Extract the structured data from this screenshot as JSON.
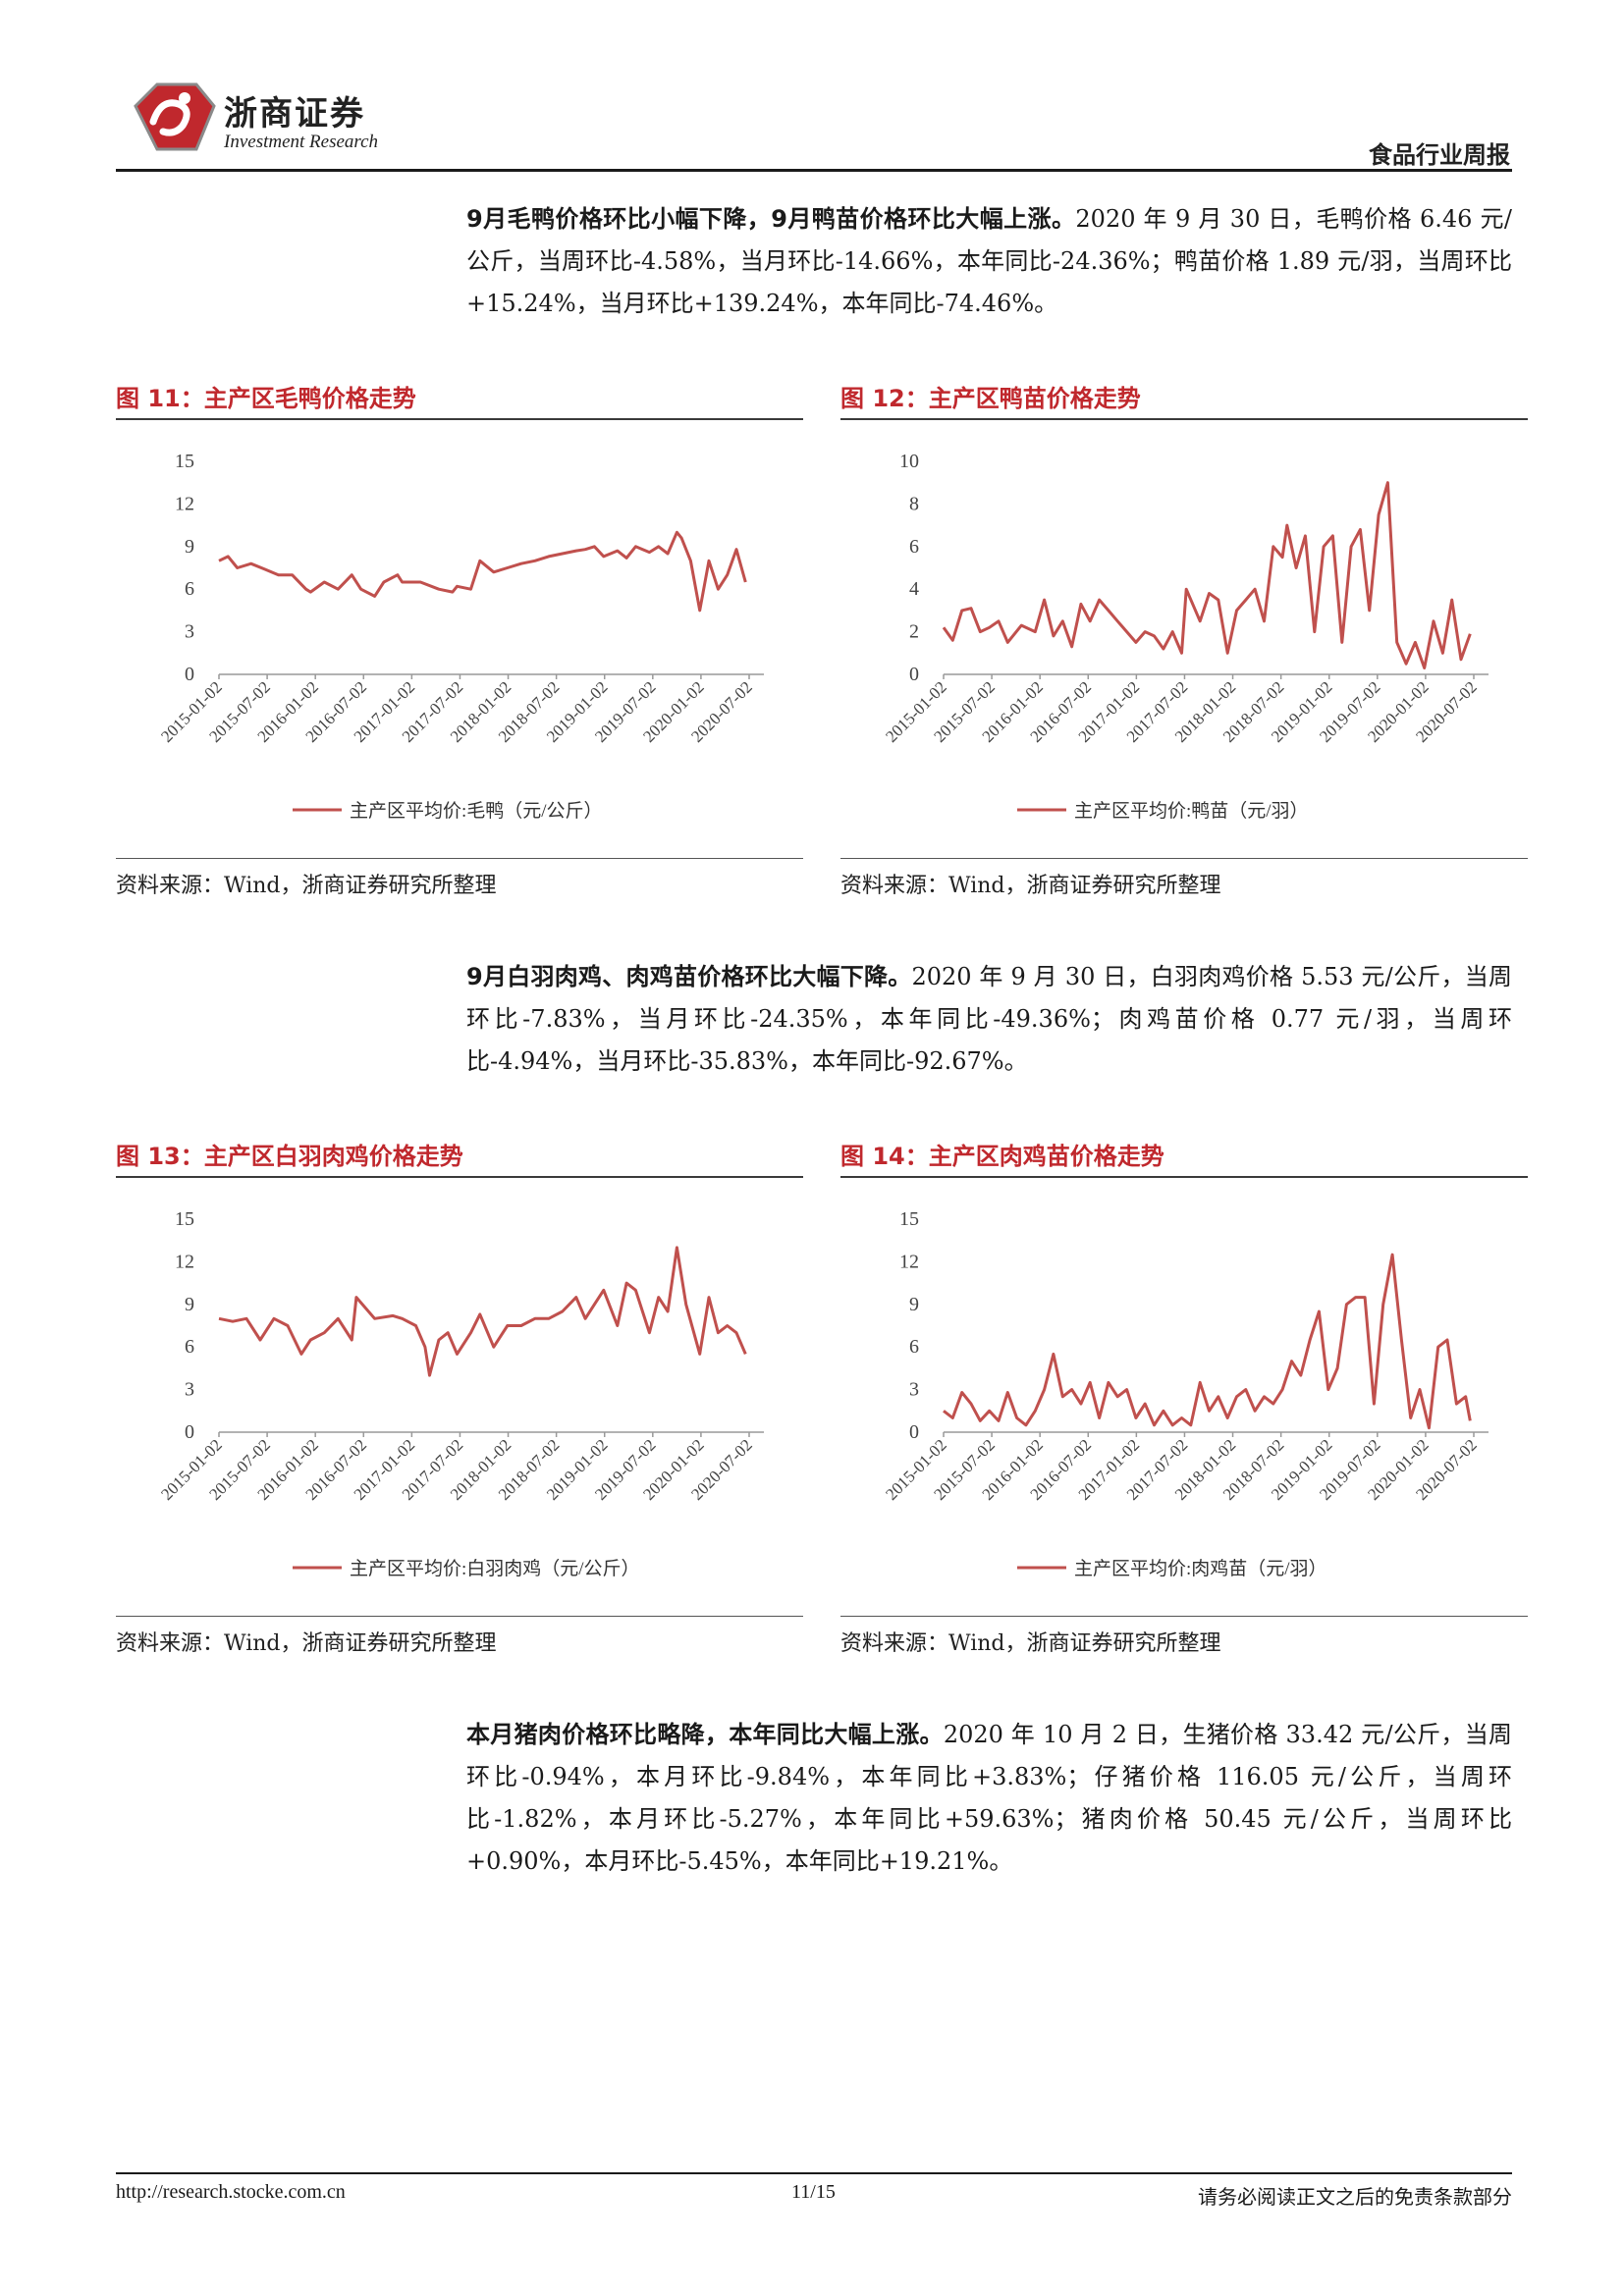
{
  "header": {
    "brand_name": "浙商证券",
    "brand_sub": "Investment Research",
    "report_type": "食品行业周报",
    "logo_color": "#c0282d"
  },
  "paragraphs": [
    {
      "lead": "9月毛鸭价格环比小幅下降，9月鸭苗价格环比大幅上涨。",
      "body": "2020 年 9 月 30 日，毛鸭价格 6.46 元/公斤，当周环比-4.58%，当月环比-14.66%，本年同比-24.36%；鸭苗价格 1.89 元/羽，当周环比+15.24%，当月环比+139.24%，本年同比-74.46%。"
    },
    {
      "lead": "9月白羽肉鸡、肉鸡苗价格环比大幅下降。",
      "body": "2020 年 9 月 30 日，白羽肉鸡价格 5.53 元/公斤，当周环比-7.83%，当月环比-24.35%，本年同比-49.36%；肉鸡苗价格 0.77 元/羽，当周环比-4.94%，当月环比-35.83%，本年同比-92.67%。"
    },
    {
      "lead": "本月猪肉价格环比略降，本年同比大幅上涨。",
      "body": "2020 年 10 月 2 日，生猪价格 33.42 元/公斤，当周环比-0.94%，本月环比-9.84%，本年同比+3.83%；仔猪价格 116.05 元/公斤，当周环比-1.82%，本月环比-5.27%，本年同比+59.63%；猪肉价格 50.45 元/公斤，当周环比+0.90%，本月环比-5.45%，本年同比+19.21%。"
    }
  ],
  "figures": [
    {
      "label": "图  11：主产区毛鸭价格走势",
      "source": "资料来源：Wind，浙商证券研究所整理"
    },
    {
      "label": "图  12：主产区鸭苗价格走势",
      "source": "资料来源：Wind，浙商证券研究所整理"
    },
    {
      "label": "图  13：主产区白羽肉鸡价格走势",
      "source": "资料来源：Wind，浙商证券研究所整理"
    },
    {
      "label": "图  14：主产区肉鸡苗价格走势",
      "source": "资料来源：Wind，浙商证券研究所整理"
    }
  ],
  "chart_data": [
    {
      "type": "line",
      "x_ticks": [
        "2015-01-02",
        "2015-07-02",
        "2016-01-02",
        "2016-07-02",
        "2017-01-02",
        "2017-07-02",
        "2018-01-02",
        "2018-07-02",
        "2019-01-02",
        "2019-07-02",
        "2020-01-02",
        "2020-07-02"
      ],
      "y_ticks": [
        "0",
        "3",
        "6",
        "9",
        "12",
        "15"
      ],
      "ylim": [
        0,
        15
      ],
      "line_color": "#c0504d",
      "series": [
        {
          "name": "主产区平均价:毛鸭（元/公斤）",
          "x": [
            2015.0,
            2015.1,
            2015.2,
            2015.35,
            2015.5,
            2015.65,
            2015.8,
            2015.95,
            2016.0,
            2016.15,
            2016.3,
            2016.45,
            2016.55,
            2016.7,
            2016.8,
            2016.95,
            2017.0,
            2017.2,
            2017.4,
            2017.55,
            2017.6,
            2017.75,
            2017.85,
            2018.0,
            2018.15,
            2018.3,
            2018.45,
            2018.6,
            2018.75,
            2018.9,
            2019.0,
            2019.1,
            2019.2,
            2019.35,
            2019.45,
            2019.55,
            2019.7,
            2019.8,
            2019.9,
            2020.0,
            2020.05,
            2020.15,
            2020.25,
            2020.35,
            2020.45,
            2020.55,
            2020.65,
            2020.75
          ],
          "y": [
            8.0,
            8.3,
            7.5,
            7.8,
            7.4,
            7.0,
            7.0,
            6.0,
            5.8,
            6.5,
            6.0,
            7.0,
            6.0,
            5.5,
            6.5,
            7.0,
            6.5,
            6.5,
            6.0,
            5.8,
            6.2,
            6.0,
            8.0,
            7.2,
            7.5,
            7.8,
            8.0,
            8.3,
            8.5,
            8.7,
            8.8,
            9.0,
            8.3,
            8.7,
            8.2,
            9.0,
            8.6,
            9.0,
            8.5,
            10.0,
            9.6,
            8.0,
            4.5,
            8.0,
            6.0,
            7.0,
            8.8,
            6.5
          ]
        }
      ]
    },
    {
      "type": "line",
      "x_ticks": [
        "2015-01-02",
        "2015-07-02",
        "2016-01-02",
        "2016-07-02",
        "2017-01-02",
        "2017-07-02",
        "2018-01-02",
        "2018-07-02",
        "2019-01-02",
        "2019-07-02",
        "2020-01-02",
        "2020-07-02"
      ],
      "y_ticks": [
        "0",
        "2",
        "4",
        "6",
        "8",
        "10"
      ],
      "ylim": [
        0,
        10
      ],
      "line_color": "#c0504d",
      "series": [
        {
          "name": "主产区平均价:鸭苗（元/羽）",
          "x": [
            2015.0,
            2015.1,
            2015.2,
            2015.3,
            2015.4,
            2015.5,
            2015.6,
            2015.7,
            2015.85,
            2016.0,
            2016.1,
            2016.2,
            2016.3,
            2016.4,
            2016.5,
            2016.6,
            2016.7,
            2016.8,
            2016.9,
            2017.0,
            2017.1,
            2017.2,
            2017.3,
            2017.4,
            2017.5,
            2017.6,
            2017.65,
            2017.8,
            2017.9,
            2018.0,
            2018.1,
            2018.2,
            2018.3,
            2018.4,
            2018.5,
            2018.6,
            2018.7,
            2018.75,
            2018.85,
            2018.95,
            2019.05,
            2019.15,
            2019.25,
            2019.35,
            2019.45,
            2019.55,
            2019.65,
            2019.75,
            2019.85,
            2019.95,
            2020.05,
            2020.15,
            2020.25,
            2020.35,
            2020.45,
            2020.55,
            2020.65,
            2020.75
          ],
          "y": [
            2.2,
            1.6,
            3.0,
            3.1,
            2.0,
            2.2,
            2.5,
            1.5,
            2.3,
            2.0,
            3.5,
            1.8,
            2.5,
            1.3,
            3.3,
            2.5,
            3.5,
            3.0,
            2.5,
            2.0,
            1.5,
            2.0,
            1.8,
            1.2,
            2.0,
            1.0,
            4.0,
            2.5,
            3.8,
            3.5,
            1.0,
            3.0,
            3.5,
            4.0,
            2.5,
            6.0,
            5.5,
            7.0,
            5.0,
            6.5,
            2.0,
            6.0,
            6.5,
            1.5,
            6.0,
            6.8,
            3.0,
            7.5,
            9.0,
            1.5,
            0.5,
            1.5,
            0.3,
            2.5,
            1.0,
            3.5,
            0.7,
            1.9
          ]
        }
      ]
    },
    {
      "type": "line",
      "x_ticks": [
        "2015-01-02",
        "2015-07-02",
        "2016-01-02",
        "2016-07-02",
        "2017-01-02",
        "2017-07-02",
        "2018-01-02",
        "2018-07-02",
        "2019-01-02",
        "2019-07-02",
        "2020-01-02",
        "2020-07-02"
      ],
      "y_ticks": [
        "0",
        "3",
        "6",
        "9",
        "12",
        "15"
      ],
      "ylim": [
        0,
        15
      ],
      "line_color": "#c0504d",
      "series": [
        {
          "name": "主产区平均价:白羽肉鸡（元/公斤）",
          "x": [
            2015.0,
            2015.15,
            2015.3,
            2015.45,
            2015.6,
            2015.75,
            2015.9,
            2016.0,
            2016.15,
            2016.3,
            2016.45,
            2016.5,
            2016.7,
            2016.9,
            2017.0,
            2017.15,
            2017.25,
            2017.3,
            2017.4,
            2017.5,
            2017.6,
            2017.75,
            2017.85,
            2018.0,
            2018.15,
            2018.3,
            2018.45,
            2018.6,
            2018.75,
            2018.9,
            2019.0,
            2019.1,
            2019.2,
            2019.35,
            2019.45,
            2019.55,
            2019.7,
            2019.8,
            2019.9,
            2020.0,
            2020.1,
            2020.25,
            2020.35,
            2020.45,
            2020.55,
            2020.65,
            2020.75
          ],
          "y": [
            8.0,
            7.8,
            8.0,
            6.5,
            8.0,
            7.5,
            5.5,
            6.5,
            7.0,
            8.0,
            6.5,
            9.5,
            8.0,
            8.2,
            8.0,
            7.5,
            6.0,
            4.0,
            6.5,
            7.0,
            5.5,
            7.0,
            8.3,
            6.0,
            7.5,
            7.5,
            8.0,
            8.0,
            8.5,
            9.5,
            8.0,
            9.0,
            10.0,
            7.5,
            10.5,
            10.0,
            7.0,
            9.5,
            8.5,
            13.0,
            9.0,
            5.5,
            9.5,
            7.0,
            7.5,
            7.0,
            5.5
          ]
        }
      ]
    },
    {
      "type": "line",
      "x_ticks": [
        "2015-01-02",
        "2015-07-02",
        "2016-01-02",
        "2016-07-02",
        "2017-01-02",
        "2017-07-02",
        "2018-01-02",
        "2018-07-02",
        "2019-01-02",
        "2019-07-02",
        "2020-01-02",
        "2020-07-02"
      ],
      "y_ticks": [
        "0",
        "3",
        "6",
        "9",
        "12",
        "15"
      ],
      "ylim": [
        0,
        15
      ],
      "line_color": "#c0504d",
      "series": [
        {
          "name": "主产区平均价:肉鸡苗（元/羽）",
          "x": [
            2015.0,
            2015.1,
            2015.2,
            2015.3,
            2015.4,
            2015.5,
            2015.6,
            2015.7,
            2015.8,
            2015.9,
            2016.0,
            2016.1,
            2016.2,
            2016.3,
            2016.4,
            2016.5,
            2016.6,
            2016.7,
            2016.8,
            2016.9,
            2017.0,
            2017.1,
            2017.2,
            2017.3,
            2017.4,
            2017.5,
            2017.6,
            2017.7,
            2017.8,
            2017.9,
            2018.0,
            2018.1,
            2018.2,
            2018.3,
            2018.4,
            2018.5,
            2018.6,
            2018.7,
            2018.8,
            2018.9,
            2019.0,
            2019.1,
            2019.2,
            2019.3,
            2019.4,
            2019.5,
            2019.6,
            2019.7,
            2019.8,
            2019.9,
            2020.0,
            2020.1,
            2020.2,
            2020.3,
            2020.4,
            2020.5,
            2020.6,
            2020.7,
            2020.75
          ],
          "y": [
            1.5,
            1.0,
            2.8,
            2.0,
            0.8,
            1.5,
            0.8,
            2.8,
            1.0,
            0.5,
            1.5,
            3.0,
            5.5,
            2.5,
            3.0,
            2.0,
            3.5,
            1.0,
            3.5,
            2.5,
            3.0,
            1.0,
            2.0,
            0.5,
            1.5,
            0.5,
            1.0,
            0.5,
            3.5,
            1.5,
            2.5,
            1.0,
            2.5,
            3.0,
            1.5,
            2.5,
            2.0,
            3.0,
            5.0,
            4.0,
            6.5,
            8.5,
            3.0,
            4.5,
            9.0,
            9.5,
            9.5,
            2.0,
            9.0,
            12.5,
            6.5,
            1.0,
            3.0,
            0.3,
            6.0,
            6.5,
            2.0,
            2.5,
            0.8
          ]
        }
      ]
    }
  ],
  "footer": {
    "url": "http://research.stocke.com.cn",
    "page": "11/15",
    "note": "请务必阅读正文之后的免责条款部分"
  }
}
